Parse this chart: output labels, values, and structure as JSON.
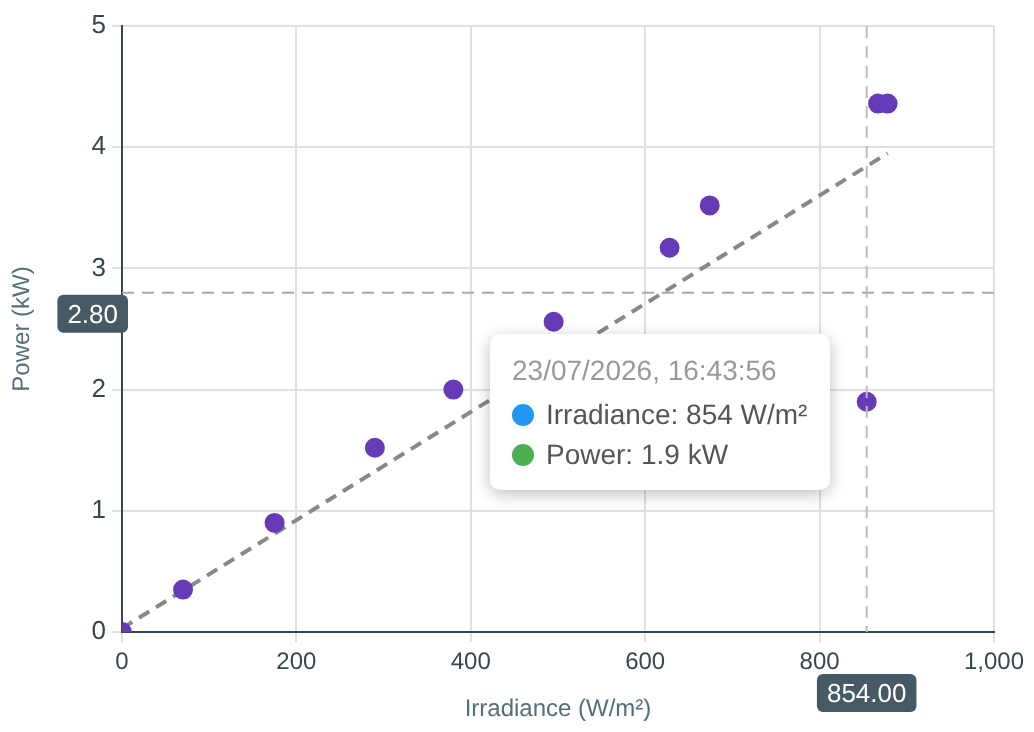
{
  "chart_data": {
    "type": "scatter",
    "xlabel": "Irradiance (W/m²)",
    "ylabel": "Power (kW)",
    "xlim": [
      0,
      1000
    ],
    "xticks": [
      0,
      200,
      400,
      600,
      800,
      {
        "value": 1000,
        "label": "1,000"
      }
    ],
    "ylim": [
      0,
      5
    ],
    "yticks": [
      0,
      1,
      2,
      3,
      4,
      5
    ],
    "grid": true,
    "legend": false,
    "marker": "circle",
    "series": [
      {
        "type": "scatter",
        "color": "#673ab7",
        "x": [
          0,
          70,
          175,
          290,
          380,
          495,
          628,
          674,
          854,
          867,
          878
        ],
        "values": [
          0,
          0.35,
          0.9,
          1.52,
          2.0,
          2.56,
          3.17,
          3.52,
          1.9,
          4.36,
          4.36
        ]
      },
      {
        "type": "line",
        "color": "#888888",
        "line_style": "dashed",
        "marker": "none",
        "x": [
          0,
          878
        ],
        "values": [
          0.03,
          3.95
        ]
      }
    ],
    "ref_lines": [
      {
        "axis": "y",
        "value": 2.8,
        "label": "2.80",
        "color": "#aaaaaa",
        "line_style": "dashed"
      },
      {
        "axis": "x",
        "value": 854,
        "label": "854.00",
        "color": "#bbbbbb",
        "line_style": "dashed"
      }
    ],
    "annotations": [
      "23/07/2026, 16:43:56",
      "Irradiance: 854 W/m²",
      "Power: 1.9 kW"
    ]
  }
}
